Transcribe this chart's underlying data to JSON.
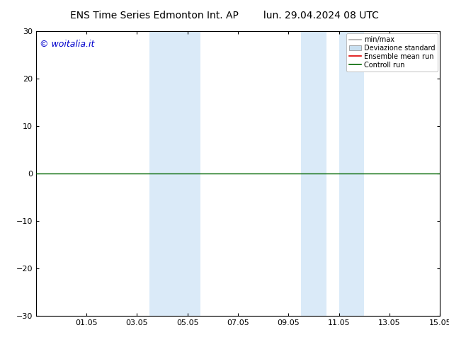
{
  "title": "ENS Time Series Edmonton Int. AP",
  "subtitle": "lun. 29.04.2024 08 UTC",
  "ylim": [
    -30,
    30
  ],
  "yticks": [
    -30,
    -20,
    -10,
    0,
    10,
    20,
    30
  ],
  "xtick_labels": [
    "01.05",
    "03.05",
    "05.05",
    "07.05",
    "09.05",
    "11.05",
    "13.05",
    "15.05"
  ],
  "xtick_positions": [
    2,
    4,
    6,
    8,
    10,
    12,
    14,
    16
  ],
  "xlim": [
    0,
    16
  ],
  "watermark": "© woitalia.it",
  "watermark_color": "#0000cc",
  "shaded_regions": [
    {
      "x_start": 4.5,
      "x_end": 5.5
    },
    {
      "x_start": 5.5,
      "x_end": 6.5
    },
    {
      "x_start": 10.5,
      "x_end": 11.5
    },
    {
      "x_start": 12.0,
      "x_end": 13.0
    }
  ],
  "shade_color": "#daeaf8",
  "legend_items": [
    {
      "label": "min/max",
      "color": "#aaaaaa",
      "lw": 1.2
    },
    {
      "label": "Deviazione standard",
      "color": "#c8dff0"
    },
    {
      "label": "Ensemble mean run",
      "color": "#dd0000",
      "lw": 1.2
    },
    {
      "label": "Controll run",
      "color": "#006600",
      "lw": 1.2
    }
  ],
  "zero_line_color": "#006600",
  "zero_line_lw": 1.0,
  "title_fontsize": 10,
  "tick_fontsize": 8,
  "legend_fontsize": 7,
  "watermark_fontsize": 9,
  "background_color": "#ffffff"
}
